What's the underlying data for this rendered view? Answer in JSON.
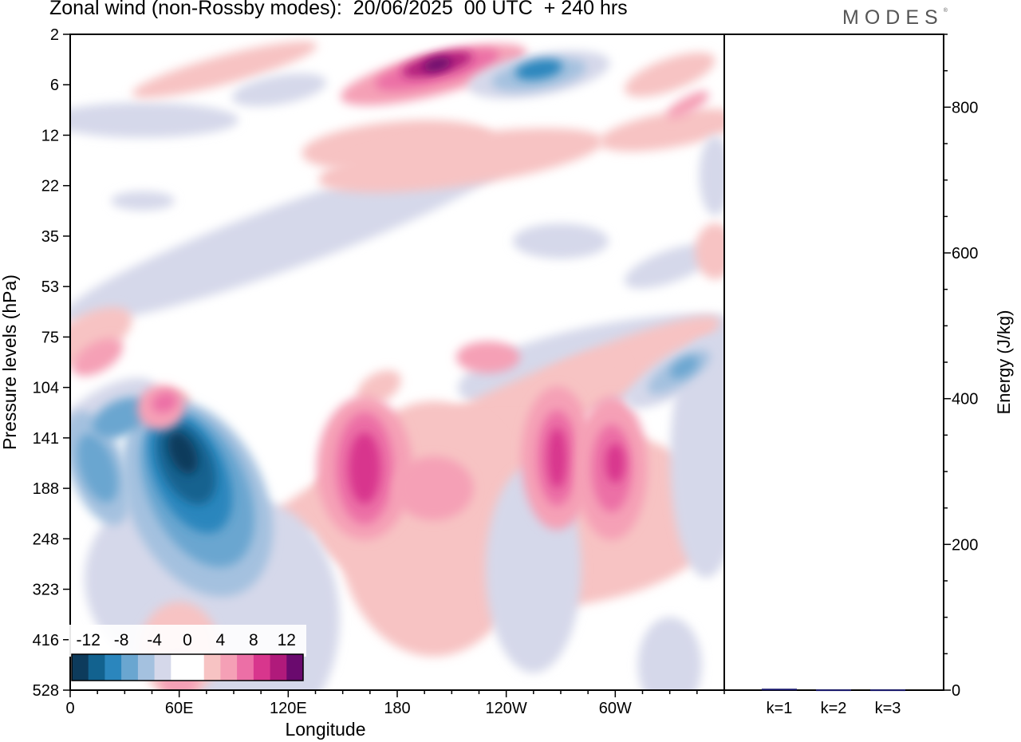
{
  "title": "Zonal wind (non-Rossby modes):  20/06/2025  00 UTC  + 240 hrs",
  "logo": "MODES",
  "logo_mark": "®",
  "chart_data": [
    {
      "type": "heatmap",
      "title": "Zonal wind (non-Rossby modes):  20/06/2025  00 UTC  + 240 hrs",
      "xlabel": "Longitude",
      "ylabel": "Pressure levels (hPa)",
      "x_ticks": [
        "0",
        "60E",
        "120E",
        "180",
        "120W",
        "60W"
      ],
      "x_tick_lon": [
        0,
        60,
        120,
        180,
        240,
        300
      ],
      "xlim": [
        0,
        360
      ],
      "y_ticks": [
        "2",
        "6",
        "12",
        "22",
        "35",
        "53",
        "75",
        "104",
        "141",
        "188",
        "248",
        "323",
        "416",
        "528"
      ],
      "colorbar": {
        "labels": [
          "-12",
          "-8",
          "-4",
          "0",
          "4",
          "8",
          "12"
        ],
        "levels": [
          -14,
          -12,
          -10,
          -8,
          -6,
          -4,
          -2,
          0,
          2,
          4,
          6,
          8,
          10,
          12,
          14
        ],
        "colors": [
          "#0d3b5c",
          "#12628f",
          "#2b86bd",
          "#6aa6d0",
          "#a4c1df",
          "#d5d8ea",
          "#ffffff",
          "#ffffff",
          "#f7c3c3",
          "#f5a0b6",
          "#ec6fa6",
          "#d8368d",
          "#b01a7b",
          "#6a0a6e"
        ],
        "placement": "bottom-left"
      },
      "features": [
        {
          "lon": 62,
          "level": 141,
          "value": -14
        },
        {
          "lon": 15,
          "level": 141,
          "value": -7
        },
        {
          "lon": 35,
          "level": 104,
          "value": -7
        },
        {
          "lon": 162,
          "level": 141,
          "value": 10
        },
        {
          "lon": 268,
          "level": 141,
          "value": 9
        },
        {
          "lon": 298,
          "level": 141,
          "value": 8
        },
        {
          "lon": 202,
          "level": 4,
          "value": 12
        },
        {
          "lon": 258,
          "level": 4,
          "value": -9
        },
        {
          "lon": 335,
          "level": 75,
          "value": -8
        },
        {
          "lon": 50,
          "level": 104,
          "value": 6
        },
        {
          "lon": 5,
          "level": 75,
          "value": 4
        }
      ]
    },
    {
      "type": "bar",
      "ylabel": "Energy (J/kg)",
      "ylim": [
        0,
        900
      ],
      "y_ticks": [
        "0",
        "200",
        "400",
        "600",
        "800"
      ],
      "categories": [
        "k=1",
        "k=2",
        "k=3"
      ],
      "values": [
        2,
        1,
        1
      ],
      "bar_color": "#1a1a6e"
    }
  ]
}
